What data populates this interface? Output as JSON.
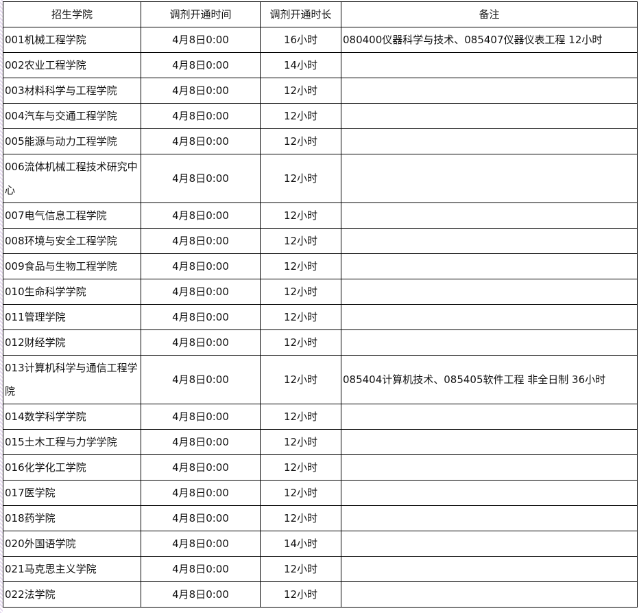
{
  "headers": [
    "招生学院",
    "调剂开通时间",
    "调剂开通时长",
    "备注"
  ],
  "rows": [
    {
      "college": "001机械工程学院",
      "time": "4月8日0:00",
      "duration": "16小时",
      "note": "080400仪器科学与技术、085407仪器仪表工程  12小时"
    },
    {
      "college": "002农业工程学院",
      "time": "4月8日0:00",
      "duration": "14小时",
      "note": ""
    },
    {
      "college": "003材料科学与工程学院",
      "time": "4月8日0:00",
      "duration": "12小时",
      "note": ""
    },
    {
      "college": "004汽车与交通工程学院",
      "time": "4月8日0:00",
      "duration": "12小时",
      "note": ""
    },
    {
      "college": "005能源与动力工程学院",
      "time": "4月8日0:00",
      "duration": "12小时",
      "note": ""
    },
    {
      "college": "006流体机械工程技术研究中心",
      "time": "4月8日0:00",
      "duration": "12小时",
      "note": "",
      "tall": true
    },
    {
      "college": "007电气信息工程学院",
      "time": "4月8日0:00",
      "duration": "12小时",
      "note": ""
    },
    {
      "college": "008环境与安全工程学院",
      "time": "4月8日0:00",
      "duration": "12小时",
      "note": ""
    },
    {
      "college": "009食品与生物工程学院",
      "time": "4月8日0:00",
      "duration": "12小时",
      "note": ""
    },
    {
      "college": "010生命科学学院",
      "time": "4月8日0:00",
      "duration": "12小时",
      "note": ""
    },
    {
      "college": "011管理学院",
      "time": "4月8日0:00",
      "duration": "12小时",
      "note": ""
    },
    {
      "college": "012财经学院",
      "time": "4月8日0:00",
      "duration": "12小时",
      "note": ""
    },
    {
      "college": "013计算机科学与通信工程学院",
      "time": "4月8日0:00",
      "duration": "12小时",
      "note": "085404计算机技术、085405软件工程 非全日制  36小时",
      "tall": true
    },
    {
      "college": "014数学科学学院",
      "time": "4月8日0:00",
      "duration": "12小时",
      "note": ""
    },
    {
      "college": "015土木工程与力学学院",
      "time": "4月8日0:00",
      "duration": "12小时",
      "note": ""
    },
    {
      "college": "016化学化工学院",
      "time": "4月8日0:00",
      "duration": "12小时",
      "note": ""
    },
    {
      "college": "017医学院",
      "time": "4月8日0:00",
      "duration": "12小时",
      "note": ""
    },
    {
      "college": "018药学院",
      "time": "4月8日0:00",
      "duration": "12小时",
      "note": ""
    },
    {
      "college": "020外国语学院",
      "time": "4月8日0:00",
      "duration": "14小时",
      "note": ""
    },
    {
      "college": "021马克思主义学院",
      "time": "4月8日0:00",
      "duration": "12小时",
      "note": ""
    },
    {
      "college": "022法学院",
      "time": "4月8日0:00",
      "duration": "12小时",
      "note": ""
    }
  ]
}
